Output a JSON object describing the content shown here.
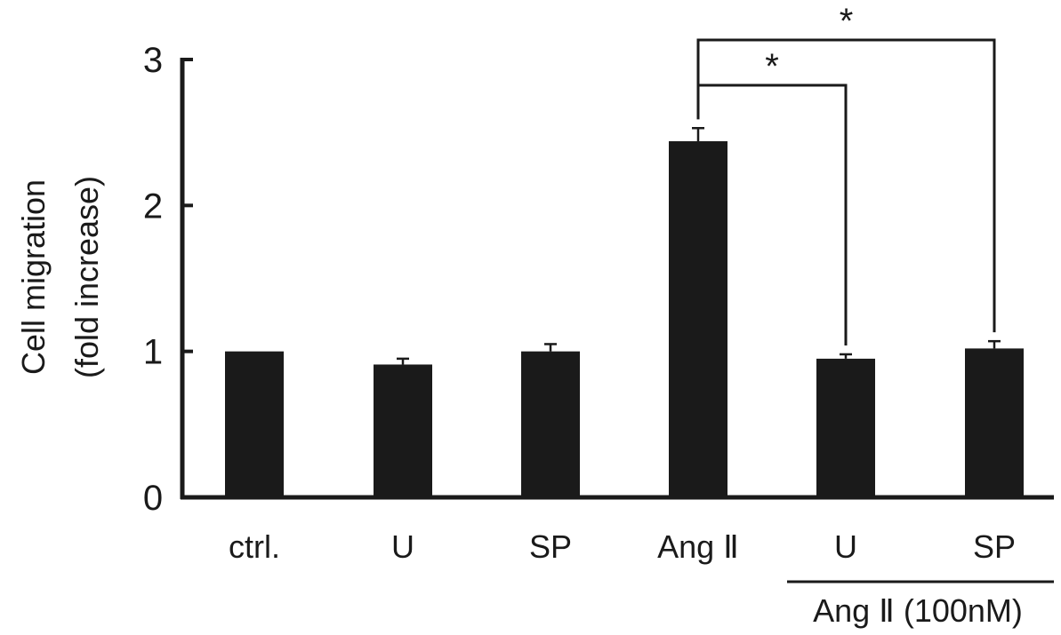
{
  "chart_data": {
    "type": "bar",
    "ylabel_line1": "Cell migration",
    "ylabel_line2": "(fold increase)",
    "ylim": [
      0,
      3
    ],
    "yticks": [
      0,
      1,
      2,
      3
    ],
    "categories": [
      "ctrl.",
      "U",
      "SP",
      "Ang Ⅱ",
      "U",
      "SP"
    ],
    "values": [
      1.0,
      0.91,
      1.0,
      2.44,
      0.95,
      1.02
    ],
    "errors": [
      0.0,
      0.04,
      0.05,
      0.09,
      0.03,
      0.05
    ],
    "bar_color": "#1a1a1a",
    "group_label": "Ang Ⅱ (100nM)",
    "significance": [
      {
        "from": 3,
        "to": 4,
        "label": "*"
      },
      {
        "from": 3,
        "to": 5,
        "label": "*"
      }
    ]
  }
}
